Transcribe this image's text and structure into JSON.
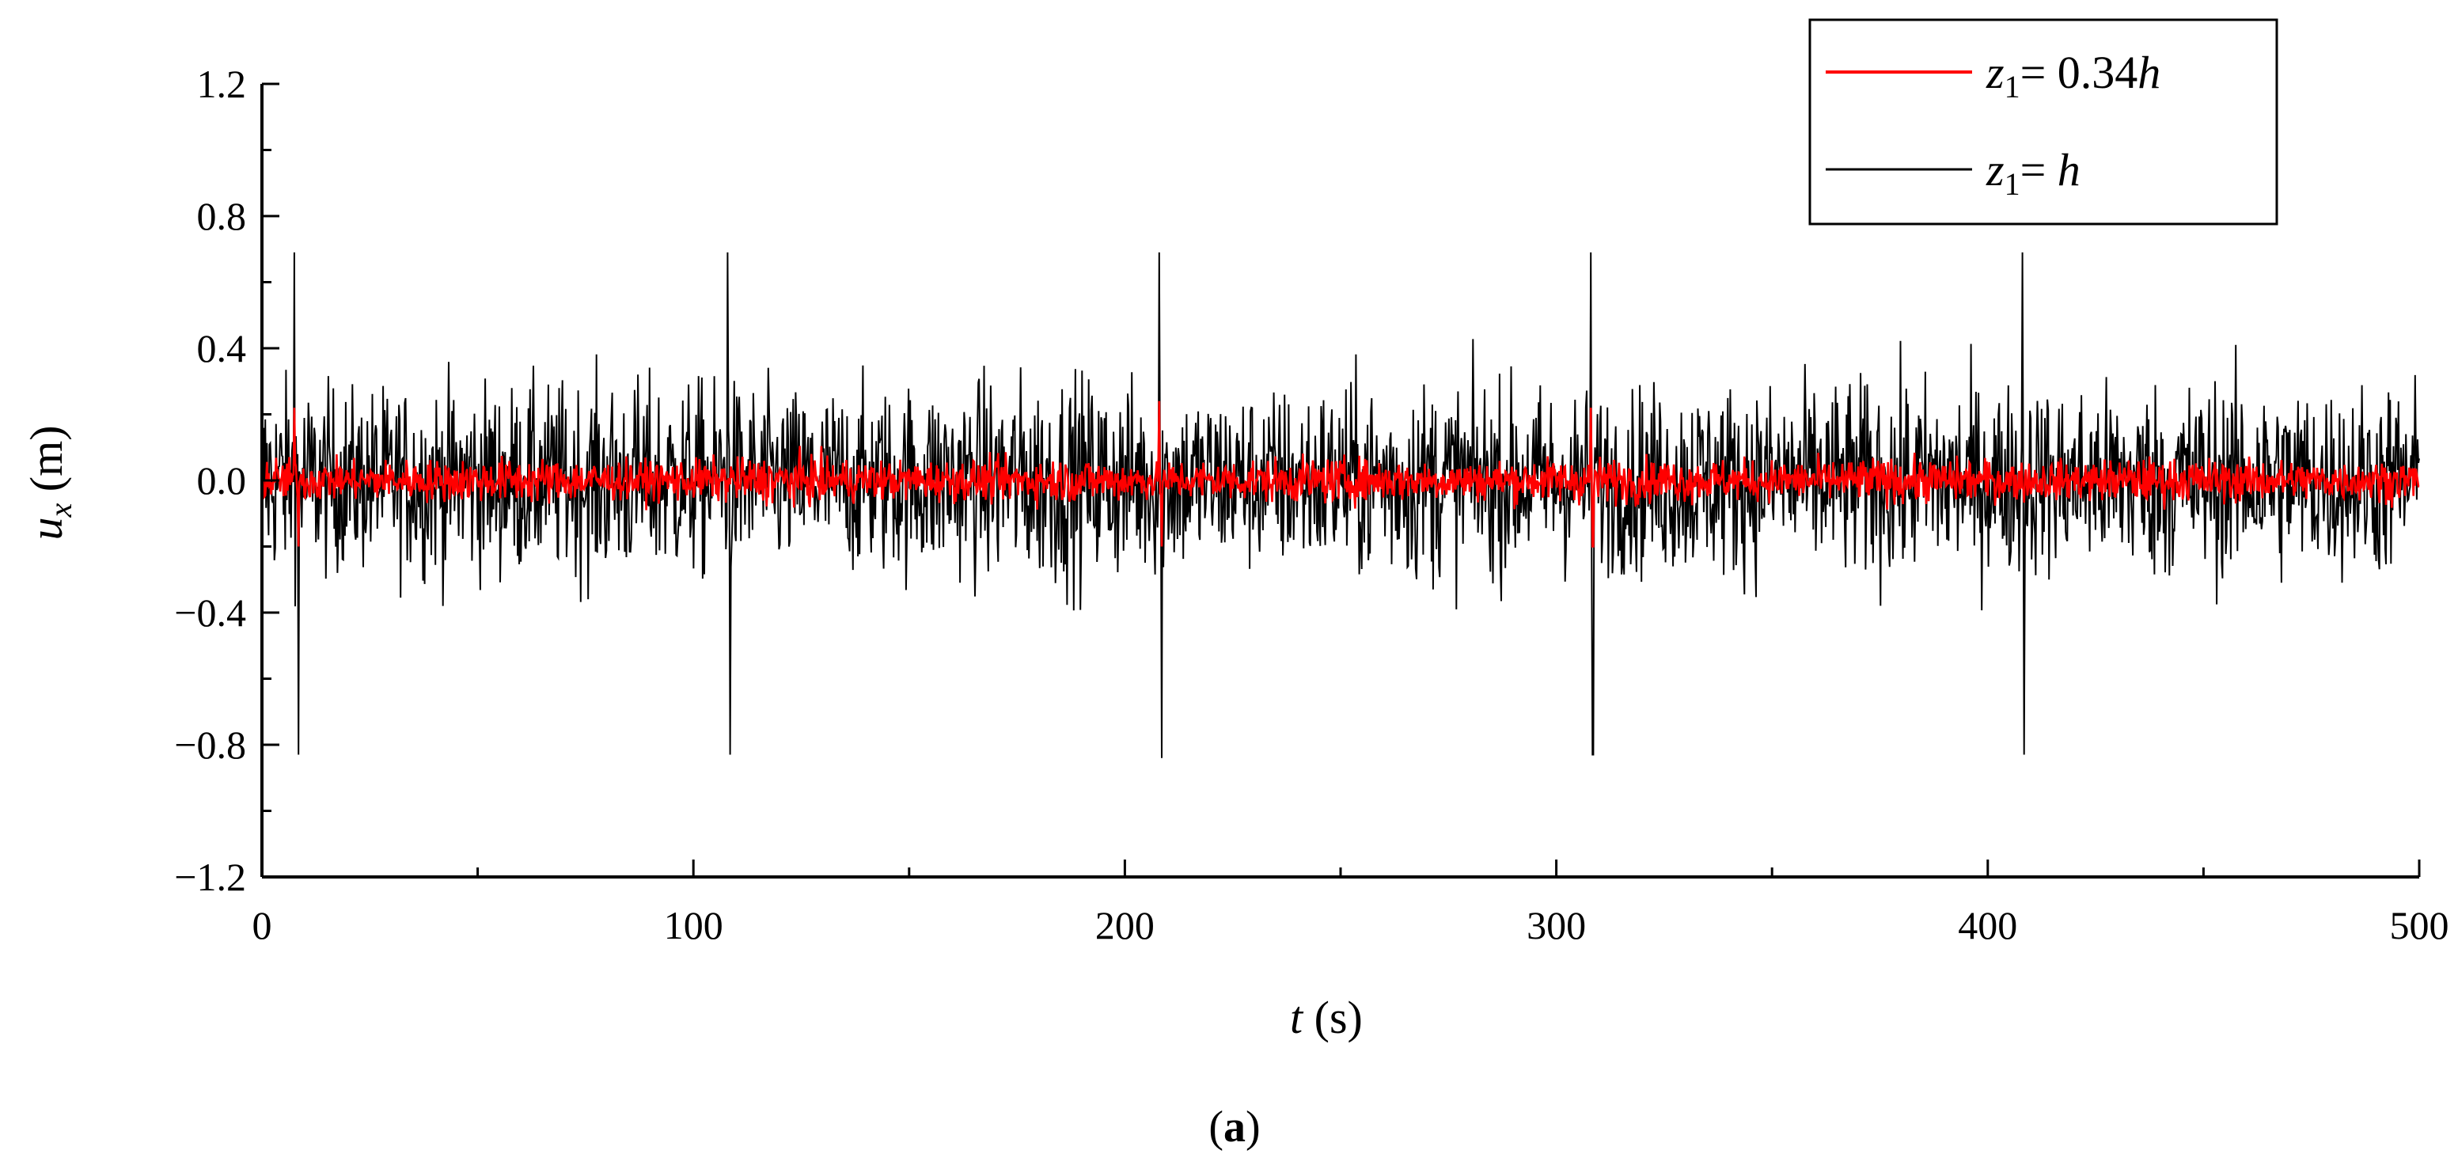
{
  "chart_data": {
    "type": "line",
    "panel_label": {
      "open": "(",
      "letter": "a",
      "close": ")"
    },
    "xlabel": {
      "var": "t",
      "unit": " (s)"
    },
    "ylabel": {
      "var": "u",
      "sub": "x",
      "unit": " (m)"
    },
    "xlim": [
      0,
      500
    ],
    "ylim": [
      -1.2,
      1.2
    ],
    "x_ticks": [
      0,
      100,
      200,
      300,
      400,
      500
    ],
    "x_tick_labels": [
      "0",
      "100",
      "200",
      "300",
      "400",
      "500"
    ],
    "y_ticks": [
      -1.2,
      -0.8,
      -0.4,
      0.0,
      0.4,
      0.8,
      1.2
    ],
    "y_tick_labels": [
      "−1.2",
      "−0.8",
      "−0.4",
      "0.0",
      "0.4",
      "0.8",
      "1.2"
    ],
    "grid": false,
    "legend_position": "top-right",
    "series": [
      {
        "name": "z1= h",
        "legend": {
          "var": "z",
          "sub": "1",
          "text": "= ",
          "var2": "h"
        },
        "color": "#000000",
        "envelope": [
          0.62,
          0.55,
          0.6,
          0.58,
          0.62,
          0.6,
          0.55,
          0.58,
          0.62,
          0.65,
          0.58,
          0.55,
          0.6,
          0.62,
          0.58,
          0.56,
          0.6,
          0.58,
          0.62,
          0.6,
          0.57,
          0.6,
          0.62,
          0.58,
          0.6
        ],
        "peaks": [
          {
            "t": 7.5,
            "v": 0.69
          },
          {
            "t": 8.5,
            "v": -0.83
          },
          {
            "t": 108,
            "v": 0.69
          },
          {
            "t": 108.5,
            "v": -0.83
          },
          {
            "t": 208,
            "v": 0.69
          },
          {
            "t": 208.5,
            "v": -0.84
          },
          {
            "t": 308,
            "v": 0.69
          },
          {
            "t": 308.5,
            "v": -0.83
          },
          {
            "t": 408,
            "v": 0.69
          },
          {
            "t": 408.5,
            "v": -0.83
          }
        ]
      },
      {
        "name": "z1= 0.34h",
        "legend": {
          "var": "z",
          "sub": "1",
          "text": "= 0.34",
          "var2": "h"
        },
        "color": "#ff0000",
        "envelope": [
          0.14,
          0.12,
          0.13,
          0.14,
          0.12,
          0.13,
          0.15,
          0.12,
          0.13,
          0.14,
          0.12,
          0.13,
          0.14,
          0.12,
          0.13,
          0.14,
          0.13,
          0.12,
          0.14,
          0.13,
          0.12,
          0.14,
          0.13,
          0.12,
          0.13
        ],
        "peaks": [
          {
            "t": 7.5,
            "v": 0.22
          },
          {
            "t": 8.5,
            "v": -0.2
          },
          {
            "t": 208,
            "v": 0.24
          },
          {
            "t": 208.5,
            "v": -0.2
          },
          {
            "t": 308,
            "v": 0.22
          },
          {
            "t": 308.5,
            "v": -0.2
          }
        ]
      }
    ]
  }
}
